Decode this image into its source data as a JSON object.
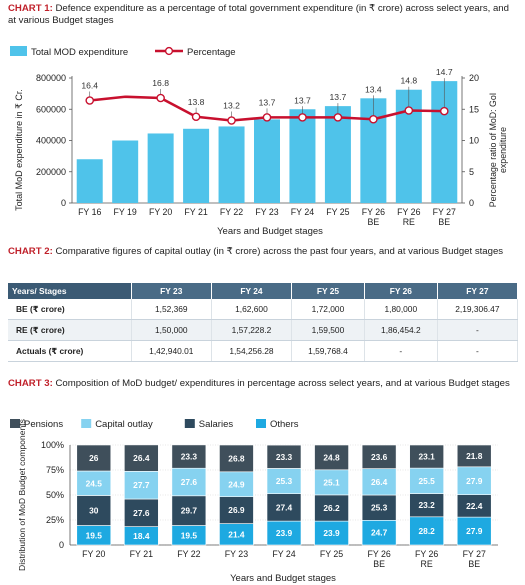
{
  "chart1": {
    "caption_label": "CHART 1:",
    "caption_text": "Defence expenditure as a percentage of total government expenditure (in ₹ crore) across select years, and at various Budget stages",
    "legend_bar": "Total MOD expenditure",
    "legend_line": "Percentage",
    "ylabel_left": "Total MoD expenditure in ₹ Cr.",
    "ylabel_right_1": "Percentage ratio of MoD: GoI",
    "ylabel_right_2": "expenditure",
    "xlabel": "Years and Budget stages",
    "colors": {
      "bar": "#4fc3ea",
      "line": "#c8102e"
    }
  },
  "chart_data": [
    {
      "type": "bar",
      "categories": [
        [
          "FY 16"
        ],
        [
          "FY 19"
        ],
        [
          "FY 20"
        ],
        [
          "FY 21"
        ],
        [
          "FY 22"
        ],
        [
          "FY 23"
        ],
        [
          "FY 24"
        ],
        [
          "FY 25"
        ],
        [
          "FY 26",
          "BE"
        ],
        [
          "FY 26",
          "RE"
        ],
        [
          "FY 27",
          "BE"
        ]
      ],
      "series": [
        {
          "name": "Total MOD expenditure",
          "type": "bar",
          "axis": "left",
          "values": [
            280000,
            400000,
            445000,
            475000,
            490000,
            535000,
            600000,
            620000,
            670000,
            725000,
            780000
          ]
        },
        {
          "name": "Percentage",
          "type": "line",
          "axis": "right",
          "values": [
            16.4,
            null,
            16.8,
            13.8,
            13.2,
            13.7,
            13.7,
            13.7,
            13.4,
            14.8,
            14.7
          ],
          "plot_values": [
            16.4,
            17.0,
            16.8,
            13.8,
            13.2,
            13.7,
            13.7,
            13.7,
            13.4,
            14.8,
            14.7
          ]
        }
      ],
      "ylim": [
        0,
        800000
      ],
      "yticks": [
        "0",
        "200000",
        "400000",
        "600000",
        "800000"
      ],
      "ylim_right": [
        0,
        20
      ],
      "yticks_right": [
        "0",
        "5",
        "10",
        "15",
        "20"
      ]
    },
    {
      "type": "table",
      "caption_label": "CHART 2:",
      "caption_text": "Comparative figures of capital outlay (in ₹ crore) across the past four years, and at various Budget stages",
      "columns": [
        "Years/ Stages",
        "FY 23",
        "FY 24",
        "FY 25",
        "FY 26",
        "FY 27"
      ],
      "rows": [
        [
          "BE (₹ crore)",
          "1,52,369",
          "1,62,600",
          "1,72,000",
          "1,80,000",
          "2,19,306.47"
        ],
        [
          "RE (₹ crore)",
          "1,50,000",
          "1,57,228.2",
          "1,59,500",
          "1,86,454.2",
          "-"
        ],
        [
          "Actuals (₹ crore)",
          "1,42,940.01",
          "1,54,256.28",
          "1,59,768.4",
          "-",
          "-"
        ]
      ]
    },
    {
      "type": "bar",
      "stacked": true,
      "caption_label": "CHART 3:",
      "caption_text": "Composition of MoD budget/ expenditures in percentage across select years, and at various Budget stages",
      "ylabel": "Distribution of MoD Budget components",
      "xlabel": "Years and Budget stages",
      "categories": [
        [
          "FY 20"
        ],
        [
          "FY 21"
        ],
        [
          "FY 22"
        ],
        [
          "FY 23"
        ],
        [
          "FY 24"
        ],
        [
          "FY 25"
        ],
        [
          "FY 26",
          "BE"
        ],
        [
          "FY 26",
          "RE"
        ],
        [
          "FY 27",
          "BE"
        ]
      ],
      "series": [
        {
          "name": "Others",
          "color": "#1ea9e1",
          "values": [
            19.5,
            18.4,
            19.5,
            21.4,
            23.9,
            23.9,
            24.7,
            28.2,
            27.9
          ]
        },
        {
          "name": "Salaries",
          "color": "#2e4a5e",
          "values": [
            30,
            27.6,
            29.7,
            26.9,
            27.4,
            26.2,
            25.3,
            23.2,
            22.4
          ]
        },
        {
          "name": "Capital outlay",
          "color": "#86d2f0",
          "values": [
            24.5,
            27.7,
            27.6,
            24.9,
            25.3,
            25.1,
            26.4,
            25.5,
            27.9
          ]
        },
        {
          "name": "Pensions",
          "color": "#3f4f5b",
          "values": [
            26,
            26.4,
            23.3,
            26.8,
            23.3,
            24.8,
            23.6,
            23.1,
            21.8
          ]
        }
      ],
      "legend_order": [
        "Pensions",
        "Capital outlay",
        "Salaries",
        "Others"
      ],
      "ylim": [
        0,
        100
      ],
      "yticks": [
        "0",
        "25%",
        "50%",
        "75%",
        "100%"
      ]
    }
  ]
}
